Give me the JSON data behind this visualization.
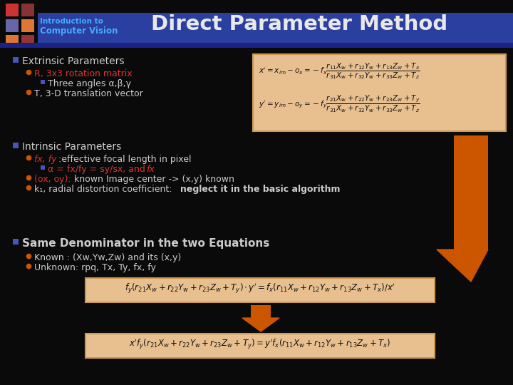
{
  "bg_color": "#0a0a0a",
  "header_bar_color": "#2a3fa0",
  "header_title": "Direct Parameter Method",
  "header_title_color": "#e8e8e8",
  "header_subtitle1": "Introduction to",
  "header_subtitle2": "Computer Vision",
  "header_sub_color": "#44aaff",
  "logo_colors": [
    "#cc3333",
    "#6666aa",
    "#dd7733",
    "#883333",
    "#dd7733",
    "#993333"
  ],
  "bullet_color": "#cccccc",
  "red_color": "#dd3333",
  "orange_color": "#cc5500",
  "eq_box_color": "#e8c090",
  "eq_box_edge": "#cc9955",
  "arrow_color": "#cc5500",
  "blue_bullet": "#4455bb"
}
